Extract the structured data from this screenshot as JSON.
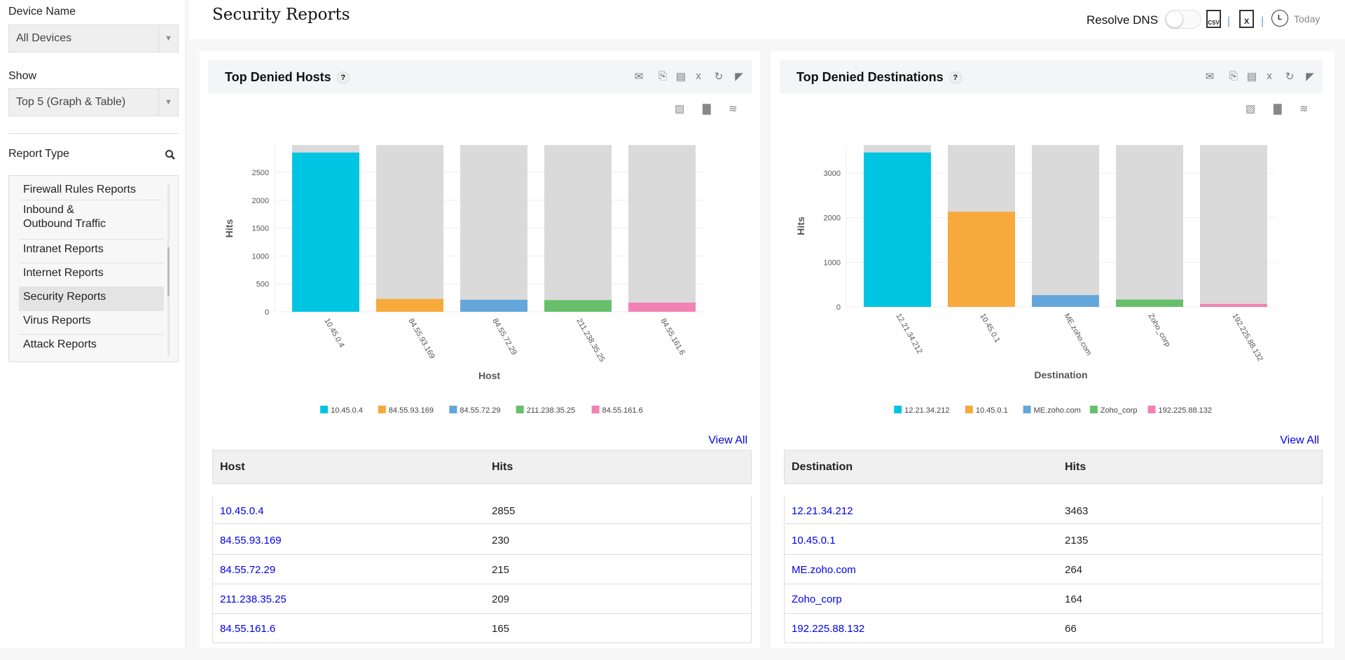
{
  "sidebar": {
    "device_label": "Device Name",
    "device_value": "All Devices",
    "show_label": "Show",
    "show_value": "Top 5 (Graph & Table)",
    "report_type_label": "Report Type",
    "items": [
      "Firewall Rules Reports",
      "Inbound & Outbound Traffic",
      "Intranet Reports",
      "Internet Reports",
      "Security Reports",
      "Virus Reports",
      "Attack Reports"
    ],
    "selected": "Security Reports"
  },
  "header": {
    "title": "Security Reports",
    "resolve_dns": "Resolve DNS",
    "resolve_dns_on": false,
    "csv": "CSV",
    "xls": "X",
    "period": "Today",
    "clock": "L"
  },
  "panels": [
    {
      "title": "Top Denied Hosts",
      "help": "?",
      "view_all": "View All",
      "columns": [
        "Host",
        "Hits"
      ],
      "rows": [
        [
          "10.45.0.4",
          "2855"
        ],
        [
          "84.55.93.169",
          "230"
        ],
        [
          "84.55.72.29",
          "215"
        ],
        [
          "211.238.35.25",
          "209"
        ],
        [
          "84.55.161.6",
          "165"
        ]
      ]
    },
    {
      "title": "Top Denied Destinations",
      "help": "?",
      "view_all": "View All",
      "columns": [
        "Destination",
        "Hits"
      ],
      "rows": [
        [
          "12.21.34.212",
          "3463"
        ],
        [
          "10.45.0.1",
          "2135"
        ],
        [
          "ME.zoho.com",
          "264"
        ],
        [
          "Zoho_corp",
          "164"
        ],
        [
          "192.225.88.132",
          "66"
        ]
      ]
    }
  ],
  "colors": {
    "series": [
      "#00c5e2",
      "#f7a93c",
      "#64a6da",
      "#67bf6b",
      "#f282b4"
    ],
    "background_bar": "#dadada",
    "link": "#0000ee"
  },
  "chart_data": [
    {
      "type": "bar",
      "xlabel": "Host",
      "ylabel": "Hits",
      "categories": [
        "10.45.0.4",
        "84.55.93.169",
        "84.55.72.29",
        "211.238.35.25",
        "84.55.161.6"
      ],
      "values": [
        2855,
        230,
        215,
        209,
        165
      ],
      "background_max": 2990,
      "yticks": [
        0,
        500,
        1000,
        1500,
        2000,
        2500
      ],
      "ylim": [
        0,
        2990
      ],
      "grid": true,
      "legend": "bottom"
    },
    {
      "type": "bar",
      "xlabel": "Destination",
      "ylabel": "Hits",
      "categories": [
        "12.21.34.212",
        "10.45.0.1",
        "ME.zoho.com",
        "Zoho_corp",
        "192.225.88.132"
      ],
      "values": [
        3463,
        2135,
        264,
        164,
        66
      ],
      "background_max": 3630,
      "yticks": [
        0,
        1000,
        2000,
        3000
      ],
      "ylim": [
        0,
        3630
      ],
      "grid": true,
      "legend": "bottom"
    }
  ]
}
